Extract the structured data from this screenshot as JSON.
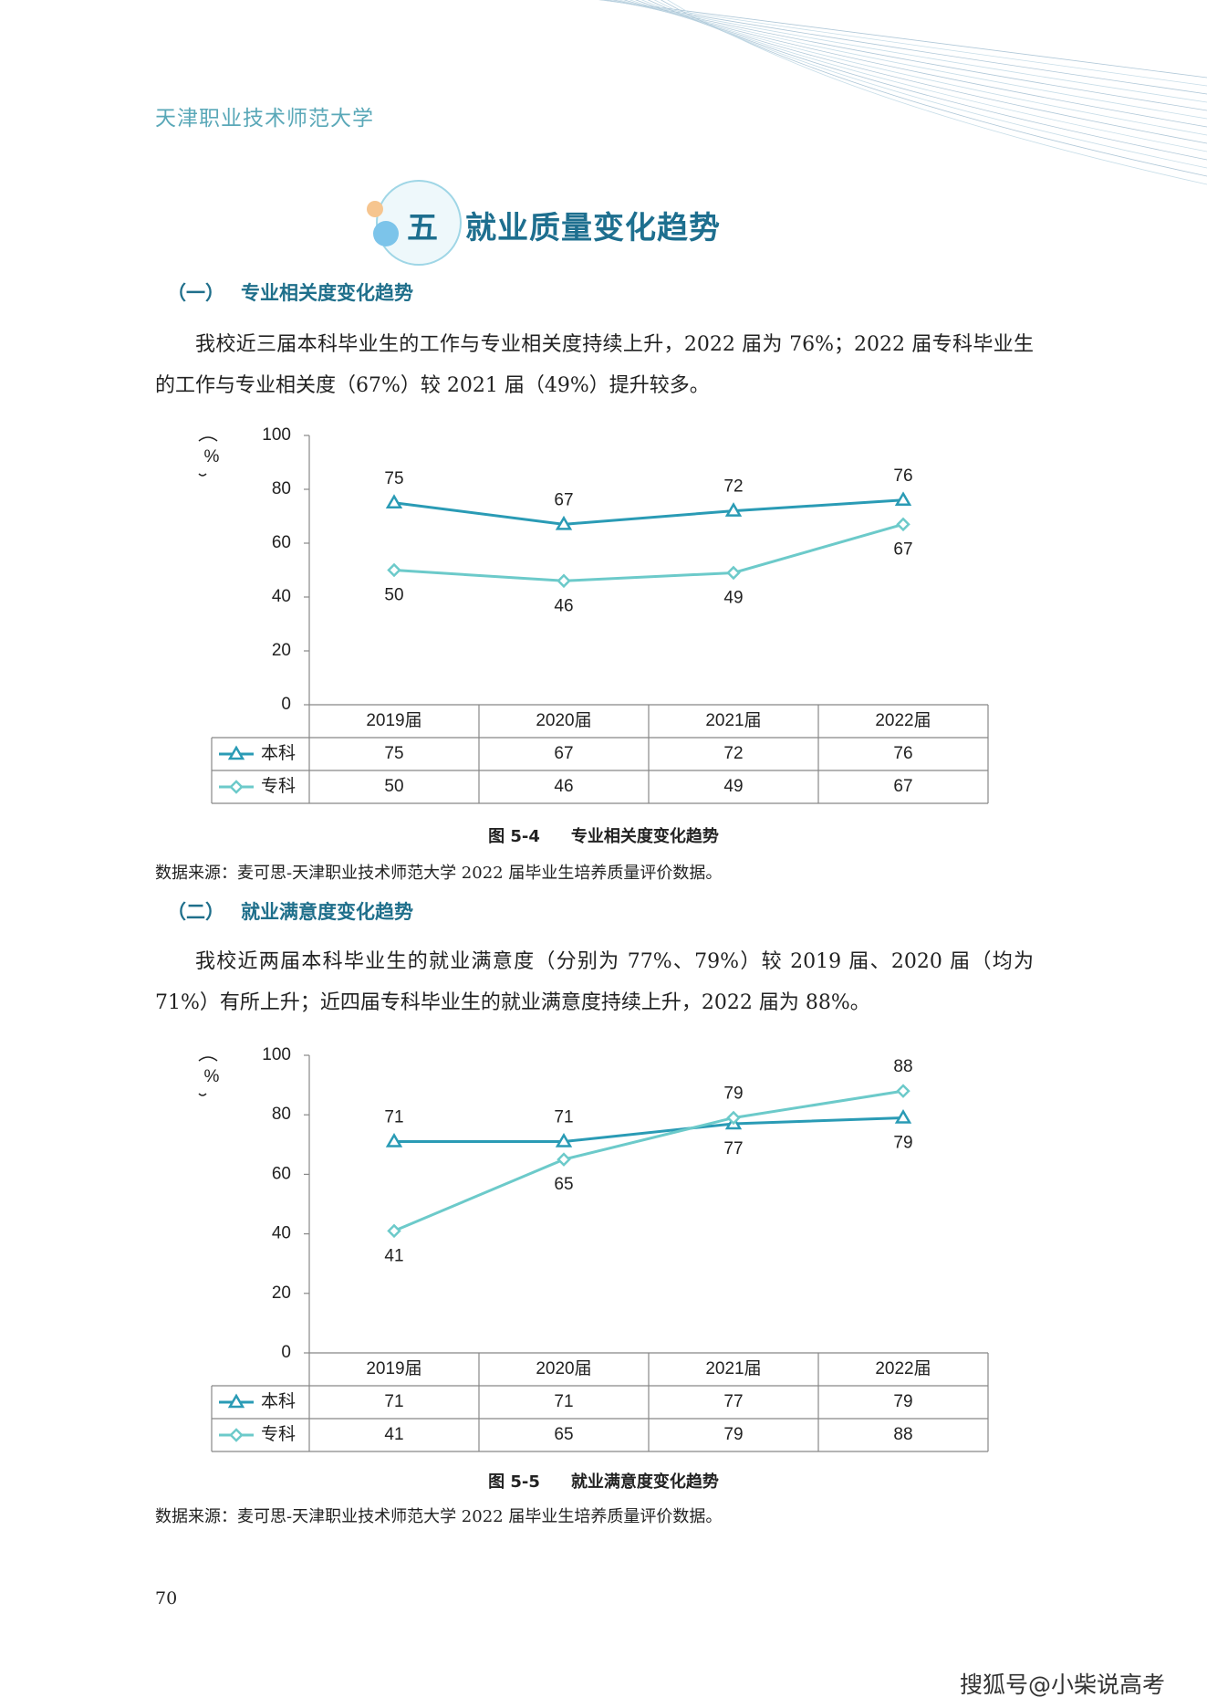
{
  "header": {
    "school": "天津职业技术师范大学"
  },
  "section": {
    "number": "五",
    "title": "就业质量变化趋势"
  },
  "sections": [
    {
      "heading_number": "（一）",
      "heading": "专业相关度变化趋势",
      "paragraph": "我校近三届本科毕业生的工作与专业相关度持续上升，2022 届为 76%；2022 届专科毕业生的工作与专业相关度（67%）较 2021 届（49%）提升较多。",
      "caption_number": "图 5-4",
      "caption": "专业相关度变化趋势",
      "source": "数据来源：麦可思-天津职业技术师范大学 2022 届毕业生培养质量评价数据。"
    },
    {
      "heading_number": "（二）",
      "heading": "就业满意度变化趋势",
      "paragraph": "我校近两届本科毕业生的就业满意度（分别为 77%、79%）较 2019 届、2020 届（均为 71%）有所上升；近四届专科毕业生的就业满意度持续上升，2022 届为 88%。",
      "caption_number": "图 5-5",
      "caption": "就业满意度变化趋势",
      "source": "数据来源：麦可思-天津职业技术师范大学 2022 届毕业生培养质量评价数据。"
    }
  ],
  "chart_data": [
    {
      "type": "line",
      "y_label": "%",
      "categories": [
        "2019届",
        "2020届",
        "2021届",
        "2022届"
      ],
      "series": [
        {
          "name": "本科",
          "color": "#2a9bb5",
          "marker": "triangle",
          "values": [
            75,
            67,
            72,
            76
          ]
        },
        {
          "name": "专科",
          "color": "#6ccaca",
          "marker": "diamond",
          "values": [
            50,
            46,
            49,
            67
          ]
        }
      ],
      "ylim": [
        0,
        100
      ],
      "yticks": [
        0,
        20,
        40,
        60,
        80,
        100
      ],
      "data_table": true
    },
    {
      "type": "line",
      "y_label": "%",
      "categories": [
        "2019届",
        "2020届",
        "2021届",
        "2022届"
      ],
      "series": [
        {
          "name": "本科",
          "color": "#2a9bb5",
          "marker": "triangle",
          "values": [
            71,
            71,
            77,
            79
          ]
        },
        {
          "name": "专科",
          "color": "#6ccaca",
          "marker": "diamond",
          "values": [
            41,
            65,
            79,
            88
          ]
        }
      ],
      "ylim": [
        0,
        100
      ],
      "yticks": [
        0,
        20,
        40,
        60,
        80,
        100
      ],
      "data_table": true
    }
  ],
  "page_number": "70",
  "watermark": "搜狐号@小柴说高考"
}
